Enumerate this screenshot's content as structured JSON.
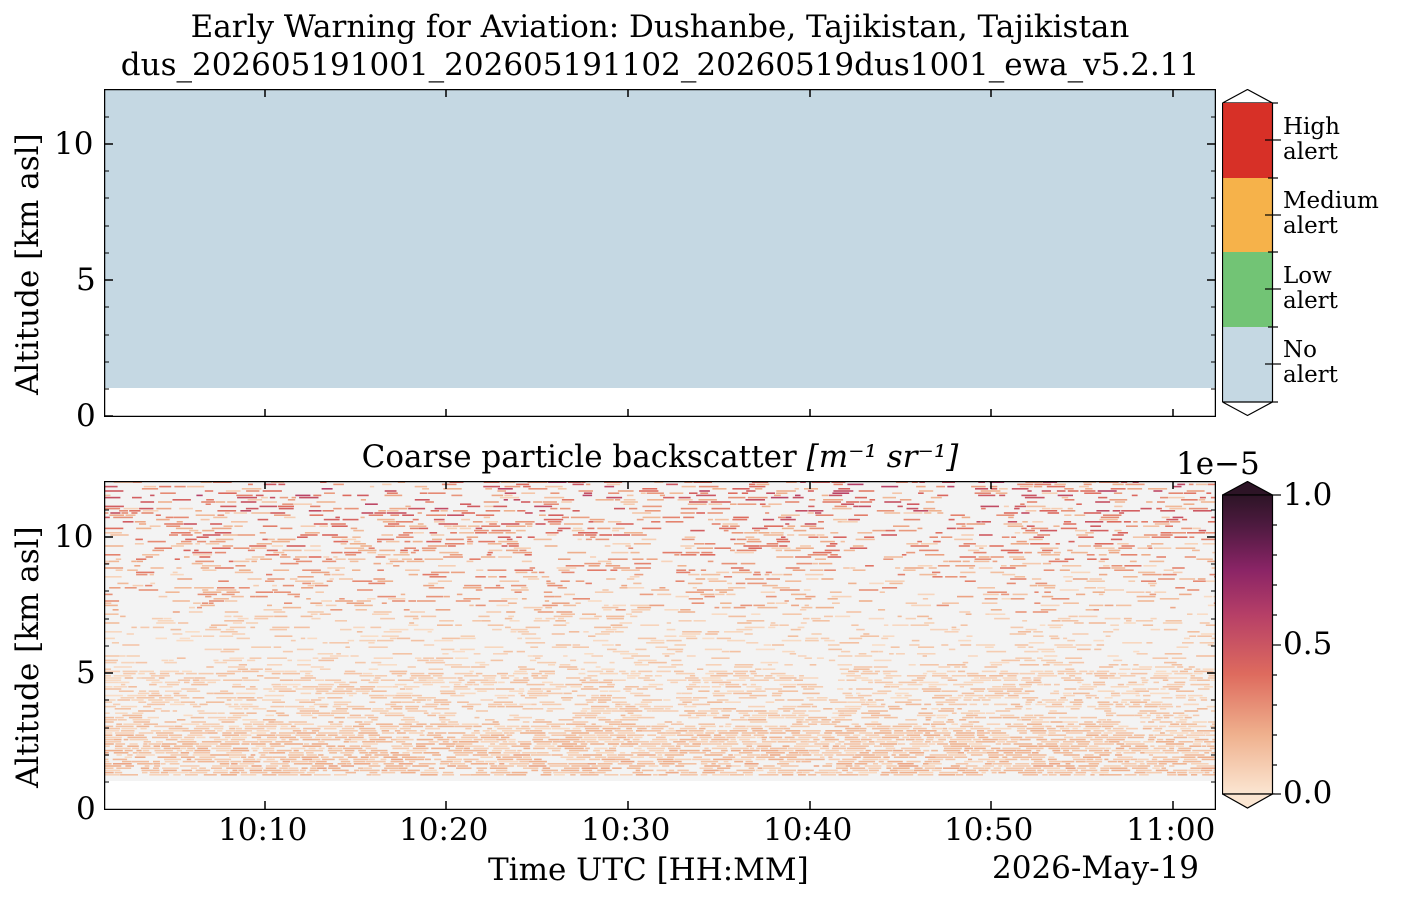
{
  "top": {
    "title_line1": "Early Warning for Aviation: Dushanbe, Tajikistan, Tajikistan",
    "title_line2": "dus_202605191001_202605191102_20260519dus1001_ewa_v5.2.11",
    "ylabel": "Altitude [km asl]",
    "yticks": [
      "10",
      "5",
      "0"
    ]
  },
  "bottom": {
    "title_text": "Coarse particle backscatter ",
    "title_units": "[m⁻¹ sr⁻¹]",
    "ylabel": "Altitude [km asl]",
    "yticks": [
      "10",
      "5",
      "0"
    ],
    "xticks": [
      "10:10",
      "10:20",
      "10:30",
      "10:40",
      "10:50",
      "11:00"
    ],
    "xlabel": "Time UTC [HH:MM]",
    "date": "2026-May-19",
    "cbar_exponent": "1e−5",
    "cbar_ticks": [
      "1.0",
      "0.5",
      "0.0"
    ]
  },
  "alert_cbar": {
    "labels": [
      {
        "l1": "High",
        "l2": "alert"
      },
      {
        "l1": "Medium",
        "l2": "alert"
      },
      {
        "l1": "Low",
        "l2": "alert"
      },
      {
        "l1": "No",
        "l2": "alert"
      }
    ],
    "colors": [
      "#d73027",
      "#f6b24a",
      "#72c475",
      "#c5d8e3"
    ]
  },
  "chart_data": [
    {
      "type": "heatmap",
      "title": "Early Warning for Aviation: Dushanbe, Tajikistan, Tajikistan",
      "ylabel": "Altitude [km asl]",
      "ylim": [
        0,
        12
      ],
      "x_range": [
        "10:01",
        "11:02"
      ],
      "categories": [
        "No alert",
        "Low alert",
        "Medium alert",
        "High alert"
      ],
      "cells": [
        {
          "altitude_km": [
            1.0,
            12.0
          ],
          "time": [
            "10:01",
            "11:02"
          ],
          "class": "No alert"
        }
      ],
      "colors": {
        "No alert": "#c5d8e3",
        "Low alert": "#72c475",
        "Medium alert": "#f6b24a",
        "High alert": "#d73027"
      }
    },
    {
      "type": "heatmap",
      "title": "Coarse particle backscatter [m^-1 sr^-1]",
      "ylabel": "Altitude [km asl]",
      "xlabel": "Time UTC [HH:MM]",
      "ylim": [
        0,
        12
      ],
      "x_range": [
        "10:01",
        "11:02"
      ],
      "colorbar_range": [
        0.0,
        1e-05
      ],
      "colorbar_exponent": "1e-5",
      "profile": [
        {
          "altitude_km": 1.2,
          "backscatter": 1e-06
        },
        {
          "altitude_km": 1.5,
          "backscatter": 1.2e-06
        },
        {
          "altitude_km": 2.5,
          "backscatter": 1e-06
        },
        {
          "altitude_km": 4.0,
          "backscatter": 8e-07
        },
        {
          "altitude_km": 6.0,
          "backscatter": 7e-07
        },
        {
          "altitude_km": 8.0,
          "backscatter": 1e-06
        },
        {
          "altitude_km": 10.0,
          "backscatter": 1.5e-06
        },
        {
          "altitude_km": 12.0,
          "backscatter": 2e-06
        }
      ]
    }
  ]
}
